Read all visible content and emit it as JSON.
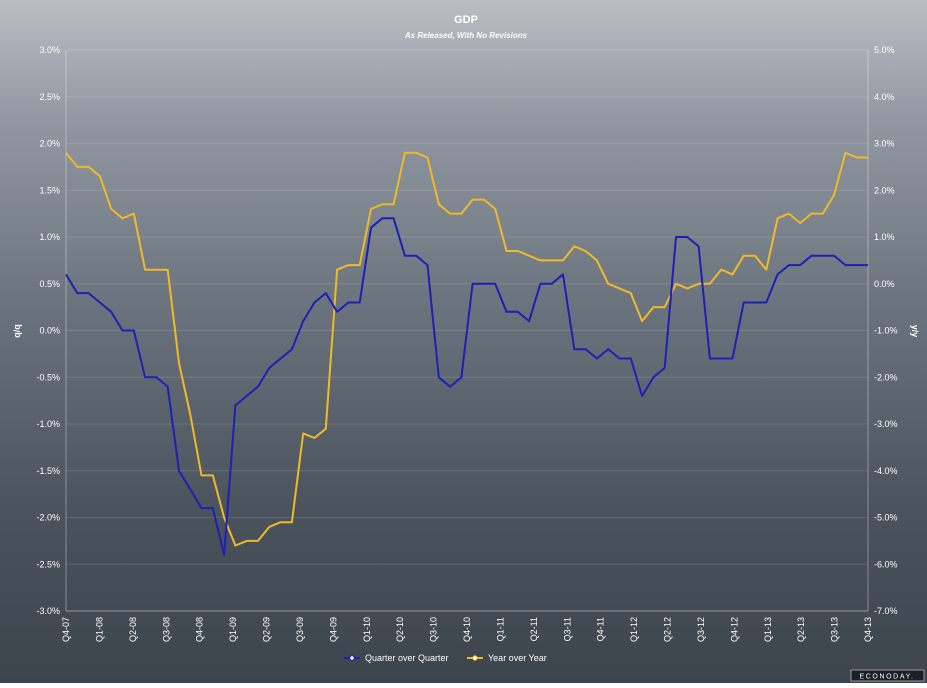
{
  "chart_data": {
    "type": "line",
    "title": "GDP",
    "subtitle": "As Released, With No Revisions",
    "ylabel_left": "q/q",
    "ylabel_right": "y/y",
    "ylim_left": [
      -3.0,
      3.0
    ],
    "ylim_right": [
      -7.0,
      5.0
    ],
    "left_ticks": [
      "3.0%",
      "2.5%",
      "2.0%",
      "1.5%",
      "1.0%",
      "0.5%",
      "0.0%",
      "-0.5%",
      "-1.0%",
      "-1.5%",
      "-2.0%",
      "-2.5%",
      "-3.0%"
    ],
    "right_ticks": [
      "5.0%",
      "4.0%",
      "3.0%",
      "2.0%",
      "1.0%",
      "0.0%",
      "-1.0%",
      "-2.0%",
      "-3.0%",
      "-4.0%",
      "-5.0%",
      "-6.0%",
      "-7.0%"
    ],
    "x_labels": [
      "Q4-07",
      "Q1-08",
      "Q2-08",
      "Q3-08",
      "Q4-08",
      "Q1-09",
      "Q2-09",
      "Q3-09",
      "Q4-09",
      "Q1-10",
      "Q2-10",
      "Q3-10",
      "Q4-10",
      "Q1-11",
      "Q2-11",
      "Q3-11",
      "Q4-11",
      "Q1-12",
      "Q2-12",
      "Q3-12",
      "Q4-12",
      "Q1-13",
      "Q2-13",
      "Q3-13",
      "Q4-13"
    ],
    "grid": true,
    "legend_position": "bottom-center",
    "series": [
      {
        "name": "Quarter over Quarter",
        "axis": "left",
        "color": "#1f1fb4",
        "values": [
          0.6,
          0.4,
          0.4,
          0.3,
          0.2,
          0.0,
          0.0,
          -0.5,
          -0.5,
          -0.6,
          -1.5,
          -1.7,
          -1.9,
          -1.9,
          -2.4,
          -0.8,
          -0.7,
          -0.6,
          -0.4,
          -0.3,
          -0.2,
          0.1,
          0.3,
          0.4,
          0.2,
          0.3,
          0.3,
          1.1,
          1.2,
          1.2,
          0.8,
          0.8,
          0.7,
          -0.5,
          -0.6,
          -0.5,
          0.5,
          0.5,
          0.5,
          0.2,
          0.2,
          0.1,
          0.5,
          0.5,
          0.6,
          -0.2,
          -0.2,
          -0.3,
          -0.2,
          -0.3,
          -0.3,
          -0.7,
          -0.5,
          -0.4,
          1.0,
          1.0,
          0.9,
          -0.3,
          -0.3,
          -0.3,
          0.3,
          0.3,
          0.3,
          0.6,
          0.7,
          0.7,
          0.8,
          0.8,
          0.8,
          0.7,
          0.7,
          0.7
        ]
      },
      {
        "name": "Year over Year",
        "axis": "right",
        "color": "#f0b929",
        "values": [
          2.8,
          2.5,
          2.5,
          2.3,
          1.6,
          1.4,
          1.5,
          0.3,
          0.3,
          0.3,
          -1.7,
          -2.8,
          -4.1,
          -4.1,
          -5.0,
          -5.6,
          -5.5,
          -5.5,
          -5.2,
          -5.1,
          -5.1,
          -3.2,
          -3.3,
          -3.1,
          0.3,
          0.4,
          0.4,
          1.6,
          1.7,
          1.7,
          2.8,
          2.8,
          2.7,
          1.7,
          1.5,
          1.5,
          1.8,
          1.8,
          1.6,
          0.7,
          0.7,
          0.6,
          0.5,
          0.5,
          0.5,
          0.8,
          0.7,
          0.5,
          0.0,
          -0.1,
          -0.2,
          -0.8,
          -0.5,
          -0.5,
          0.0,
          -0.1,
          0.0,
          0.0,
          0.3,
          0.2,
          0.6,
          0.6,
          0.3,
          1.4,
          1.5,
          1.3,
          1.5,
          1.5,
          1.9,
          2.8,
          2.7,
          2.7
        ]
      }
    ]
  },
  "brand": "ECONODAY."
}
